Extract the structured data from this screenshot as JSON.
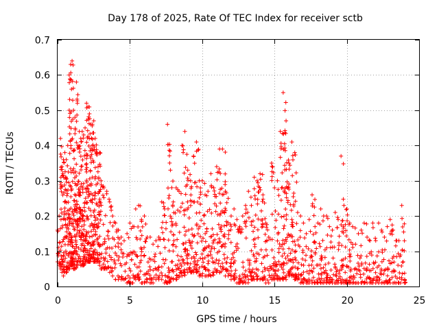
{
  "chart_data": {
    "type": "scatter",
    "title": "Day 178 of 2025, Rate Of TEC Index for receiver sctb",
    "xlabel": "GPS time / hours",
    "ylabel": "ROTI / TECUs",
    "xlim": [
      0,
      25
    ],
    "ylim": [
      0,
      0.7
    ],
    "xticks": [
      "0",
      "5",
      "10",
      "15",
      "20",
      "25"
    ],
    "yticks": [
      "0",
      "0.1",
      "0.2",
      "0.3",
      "0.4",
      "0.5",
      "0.6",
      "0.7"
    ],
    "grid": true,
    "marker": "+",
    "color": "#ff0000",
    "series": [
      {
        "x": [
          0.0,
          0.1,
          0.2,
          0.3,
          0.4,
          0.5,
          0.6,
          0.7,
          0.8,
          0.9,
          1.0,
          1.1,
          1.2,
          1.3,
          1.4,
          1.5,
          1.6,
          1.7,
          1.8,
          1.9,
          2.0,
          2.1,
          2.2,
          2.3,
          2.4,
          2.5,
          2.6,
          2.7,
          2.8,
          2.9,
          3.0,
          3.2,
          3.4,
          3.6,
          3.8,
          4.0,
          4.2,
          4.4,
          4.6,
          4.8,
          5.0,
          5.2,
          5.4,
          5.6,
          5.8,
          6.0,
          6.2,
          6.4,
          6.6,
          6.8,
          7.0,
          7.2,
          7.4,
          7.6,
          7.8,
          8.0,
          8.2,
          8.4,
          8.6,
          8.8,
          9.0,
          9.2,
          9.4,
          9.6,
          9.8,
          10.0,
          10.2,
          10.4,
          10.6,
          10.8,
          11.0,
          11.2,
          11.4,
          11.6,
          11.8,
          12.0,
          12.2,
          12.4,
          12.6,
          12.8,
          13.0,
          13.2,
          13.4,
          13.6,
          13.8,
          14.0,
          14.2,
          14.4,
          14.6,
          14.8,
          15.0,
          15.2,
          15.4,
          15.6,
          15.8,
          16.0,
          16.2,
          16.4,
          16.6,
          16.8,
          17.0,
          17.2,
          17.4,
          17.6,
          17.8,
          18.0,
          18.2,
          18.4,
          18.6,
          18.8,
          19.0,
          19.2,
          19.4,
          19.6,
          19.8,
          20.0,
          20.2,
          20.4,
          20.6,
          20.8,
          21.0,
          21.2,
          21.4,
          21.6,
          21.8,
          22.0,
          22.2,
          22.4,
          22.6,
          22.8,
          23.0,
          23.2,
          23.4,
          23.6,
          23.8,
          24.0
        ],
        "y_max": [
          0.16,
          0.2,
          0.42,
          0.34,
          0.36,
          0.38,
          0.36,
          0.4,
          0.6,
          0.63,
          0.64,
          0.5,
          0.48,
          0.58,
          0.4,
          0.44,
          0.42,
          0.44,
          0.43,
          0.45,
          0.52,
          0.51,
          0.49,
          0.46,
          0.46,
          0.47,
          0.42,
          0.38,
          0.34,
          0.38,
          0.3,
          0.28,
          0.27,
          0.24,
          0.2,
          0.18,
          0.16,
          0.14,
          0.13,
          0.15,
          0.18,
          0.17,
          0.22,
          0.23,
          0.19,
          0.2,
          0.14,
          0.14,
          0.12,
          0.13,
          0.14,
          0.24,
          0.22,
          0.46,
          0.33,
          0.24,
          0.28,
          0.27,
          0.4,
          0.44,
          0.33,
          0.3,
          0.37,
          0.41,
          0.3,
          0.3,
          0.26,
          0.27,
          0.32,
          0.28,
          0.34,
          0.39,
          0.39,
          0.27,
          0.25,
          0.2,
          0.22,
          0.19,
          0.17,
          0.2,
          0.23,
          0.27,
          0.23,
          0.31,
          0.3,
          0.32,
          0.26,
          0.18,
          0.14,
          0.35,
          0.28,
          0.3,
          0.44,
          0.55,
          0.47,
          0.35,
          0.41,
          0.38,
          0.21,
          0.2,
          0.18,
          0.15,
          0.19,
          0.26,
          0.17,
          0.18,
          0.22,
          0.2,
          0.2,
          0.17,
          0.16,
          0.21,
          0.19,
          0.37,
          0.23,
          0.22,
          0.18,
          0.17,
          0.12,
          0.15,
          0.16,
          0.18,
          0.14,
          0.13,
          0.18,
          0.13,
          0.18,
          0.16,
          0.14,
          0.17,
          0.19,
          0.16,
          0.13,
          0.13,
          0.23,
          0.02
        ],
        "y_min": [
          0.07,
          0.06,
          0.05,
          0.04,
          0.03,
          0.04,
          0.04,
          0.05,
          0.05,
          0.06,
          0.06,
          0.05,
          0.05,
          0.06,
          0.07,
          0.07,
          0.06,
          0.06,
          0.06,
          0.07,
          0.07,
          0.07,
          0.07,
          0.08,
          0.08,
          0.07,
          0.07,
          0.07,
          0.07,
          0.06,
          0.05,
          0.05,
          0.05,
          0.04,
          0.03,
          0.02,
          0.02,
          0.02,
          0.02,
          0.01,
          0.01,
          0.01,
          0.02,
          0.02,
          0.01,
          0.01,
          0.02,
          0.01,
          0.01,
          0.02,
          0.02,
          0.02,
          0.01,
          0.01,
          0.02,
          0.02,
          0.02,
          0.03,
          0.03,
          0.04,
          0.04,
          0.04,
          0.04,
          0.04,
          0.03,
          0.03,
          0.03,
          0.03,
          0.03,
          0.04,
          0.04,
          0.04,
          0.05,
          0.03,
          0.03,
          0.02,
          0.02,
          0.01,
          0.01,
          0.01,
          0.01,
          0.02,
          0.02,
          0.02,
          0.02,
          0.02,
          0.02,
          0.01,
          0.01,
          0.02,
          0.02,
          0.02,
          0.02,
          0.02,
          0.02,
          0.03,
          0.03,
          0.02,
          0.02,
          0.01,
          0.01,
          0.01,
          0.01,
          0.01,
          0.01,
          0.01,
          0.01,
          0.01,
          0.01,
          0.01,
          0.01,
          0.01,
          0.01,
          0.01,
          0.01,
          0.01,
          0.01,
          0.01,
          0.01,
          0.01,
          0.01,
          0.01,
          0.01,
          0.01,
          0.01,
          0.01,
          0.01,
          0.01,
          0.01,
          0.01,
          0.01,
          0.01,
          0.01,
          0.01,
          0.02,
          0.01
        ]
      }
    ]
  }
}
